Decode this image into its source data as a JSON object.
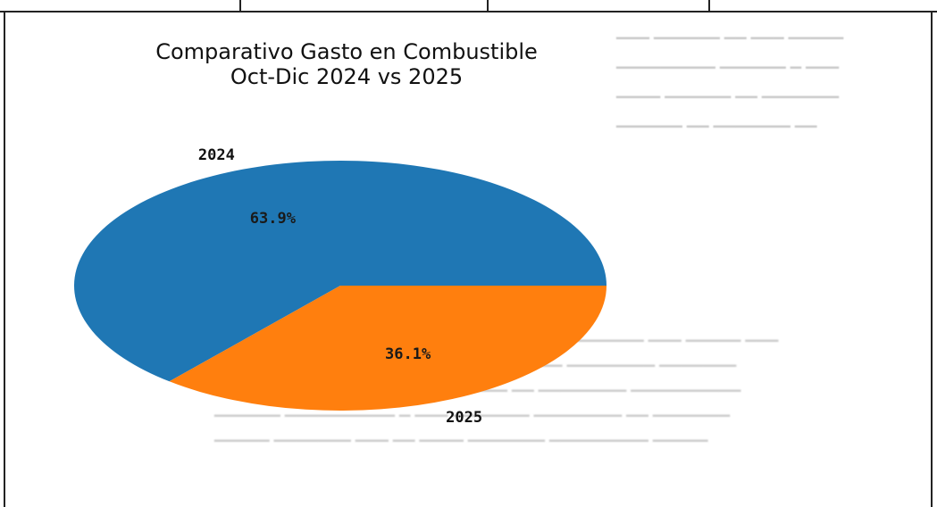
{
  "chart_data": {
    "type": "pie",
    "title": [
      "Comparativo Gasto en Combustible",
      "Oct-Dic 2024 vs 2025"
    ],
    "categories": [
      "2024",
      "2025"
    ],
    "values": [
      63.9,
      36.1
    ],
    "value_labels": [
      "63.9%",
      "36.1%"
    ],
    "colors": [
      "#1f77b4",
      "#ff7f0e"
    ],
    "legend": "none"
  }
}
